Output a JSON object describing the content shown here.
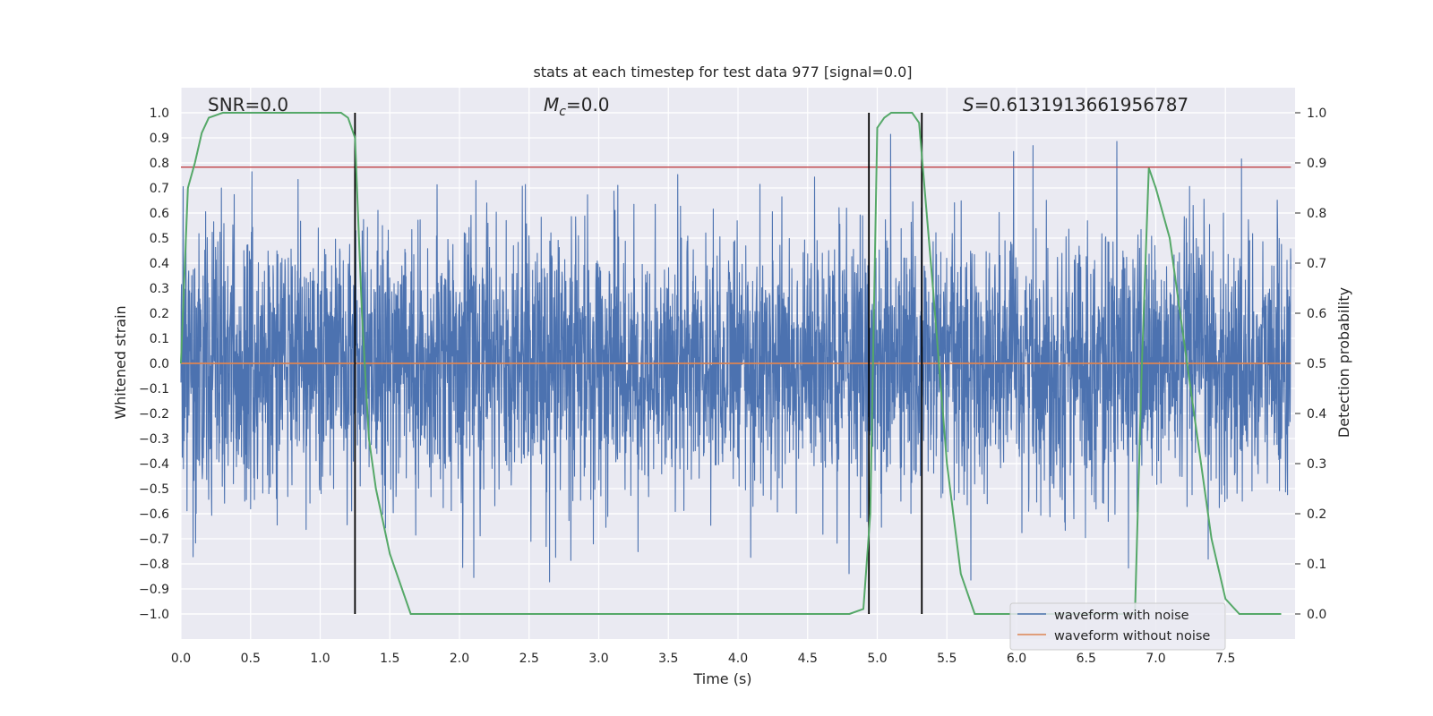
{
  "chart_data": {
    "type": "line",
    "title": "stats at each timestep for test data 977 [signal=0.0]",
    "xlabel": "Time (s)",
    "ylabel": "Whitened strain",
    "y2label": "Detection probability",
    "xlim": [
      0.0,
      8.0
    ],
    "ylim": [
      -1.1,
      1.1
    ],
    "y2lim": [
      -0.05,
      1.05
    ],
    "xticks": [
      "0.0",
      "0.5",
      "1.0",
      "1.5",
      "2.0",
      "2.5",
      "3.0",
      "3.5",
      "4.0",
      "4.5",
      "5.0",
      "5.5",
      "6.0",
      "6.5",
      "7.0",
      "7.5"
    ],
    "yticks": [
      "1.0",
      "0.9",
      "0.8",
      "0.7",
      "0.6",
      "0.5",
      "0.4",
      "0.3",
      "0.2",
      "0.1",
      "0.0",
      "-0.1",
      "-0.2",
      "-0.3",
      "-0.4",
      "-0.5",
      "-0.6",
      "-0.7",
      "-0.8",
      "-0.9",
      "-1.0"
    ],
    "y2ticks": [
      "1.0",
      "0.9",
      "0.8",
      "0.7",
      "0.6",
      "0.5",
      "0.4",
      "0.3",
      "0.2",
      "0.1",
      "0.0"
    ],
    "grid": true,
    "legend_position": "lower-right",
    "annotations": {
      "snr": "SNR=0.0",
      "mc_symbol": "M",
      "mc_sub": "c",
      "mc_value": "=0.0",
      "s_symbol": "S",
      "s_value": "=0.6131913661956787"
    },
    "series": [
      {
        "name": "waveform with noise",
        "color": "#4c72b0",
        "axis": "left",
        "kind": "noise",
        "typical_amplitude": 0.5,
        "peak_amplitude": 0.98
      },
      {
        "name": "waveform without noise",
        "color": "#dd8452",
        "axis": "left",
        "x": [
          0.0,
          8.0
        ],
        "y": [
          0.0,
          0.0
        ]
      },
      {
        "name": "detection probability",
        "color": "#55a868",
        "axis": "right",
        "x": [
          0.0,
          0.05,
          0.1,
          0.15,
          0.2,
          0.3,
          0.5,
          0.7,
          1.0,
          1.1,
          1.15,
          1.2,
          1.25,
          1.3,
          1.35,
          1.4,
          1.5,
          1.6,
          1.65,
          1.8,
          2.5,
          3.0,
          4.0,
          4.8,
          4.9,
          4.95,
          5.0,
          5.05,
          5.1,
          5.25,
          5.3,
          5.4,
          5.5,
          5.6,
          5.7,
          6.0,
          6.5,
          6.7,
          6.8,
          6.85,
          6.9,
          6.95,
          7.0,
          7.1,
          7.2,
          7.3,
          7.4,
          7.5,
          7.6,
          7.9
        ],
        "y": [
          0.5,
          0.85,
          0.9,
          0.96,
          0.99,
          1.0,
          1.0,
          1.0,
          1.0,
          1.0,
          1.0,
          0.99,
          0.95,
          0.6,
          0.35,
          0.25,
          0.12,
          0.04,
          0.0,
          0.0,
          0.0,
          0.0,
          0.0,
          0.0,
          0.01,
          0.2,
          0.97,
          0.99,
          1.0,
          1.0,
          0.98,
          0.65,
          0.3,
          0.08,
          0.0,
          0.0,
          0.0,
          0.0,
          0.0,
          0.0,
          0.5,
          0.89,
          0.85,
          0.75,
          0.55,
          0.35,
          0.15,
          0.03,
          0.0,
          0.0
        ]
      },
      {
        "name": "threshold",
        "color": "#c44e52",
        "axis": "left",
        "x": [
          0.0,
          8.0
        ],
        "y": [
          0.783,
          0.783
        ]
      }
    ],
    "vertical_lines": [
      1.25,
      4.94,
      5.32
    ]
  }
}
